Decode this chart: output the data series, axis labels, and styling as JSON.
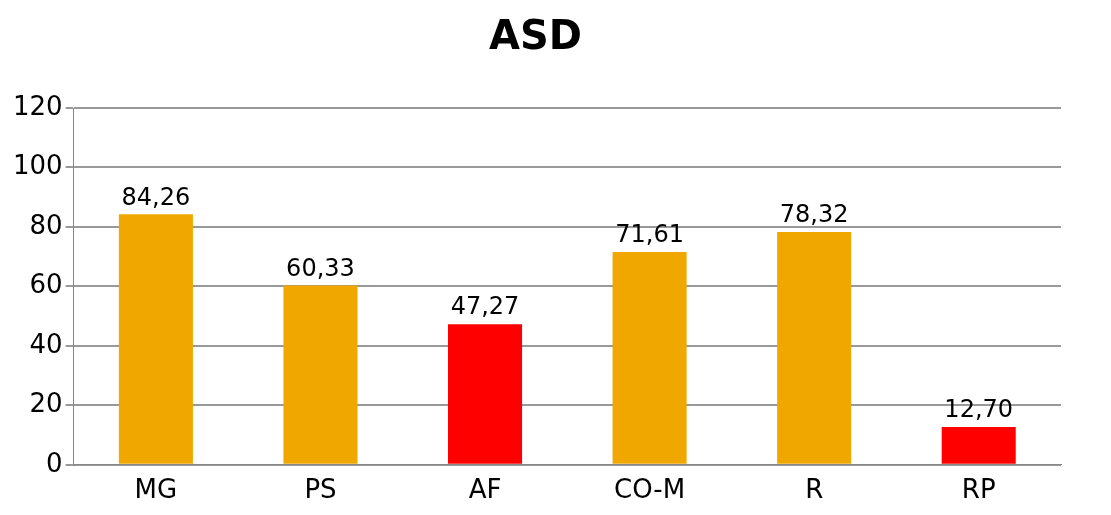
{
  "chart_data": {
    "type": "bar",
    "title": "ASD",
    "categories": [
      "MG",
      "PS",
      "AF",
      "CO-M",
      "R",
      "RP"
    ],
    "values": [
      84.26,
      60.33,
      47.27,
      71.61,
      78.32,
      12.7
    ],
    "colors": [
      "#f0a800",
      "#f0a800",
      "#ff0000",
      "#f0a800",
      "#f0a800",
      "#ff0000"
    ],
    "value_labels": [
      "84,26",
      "60,33",
      "47,27",
      "71,61",
      "78,32",
      "12,70"
    ],
    "ylim": [
      0,
      120
    ],
    "yticks": [
      0,
      20,
      40,
      60,
      80,
      100,
      120
    ],
    "grid": "y",
    "legend": false
  }
}
